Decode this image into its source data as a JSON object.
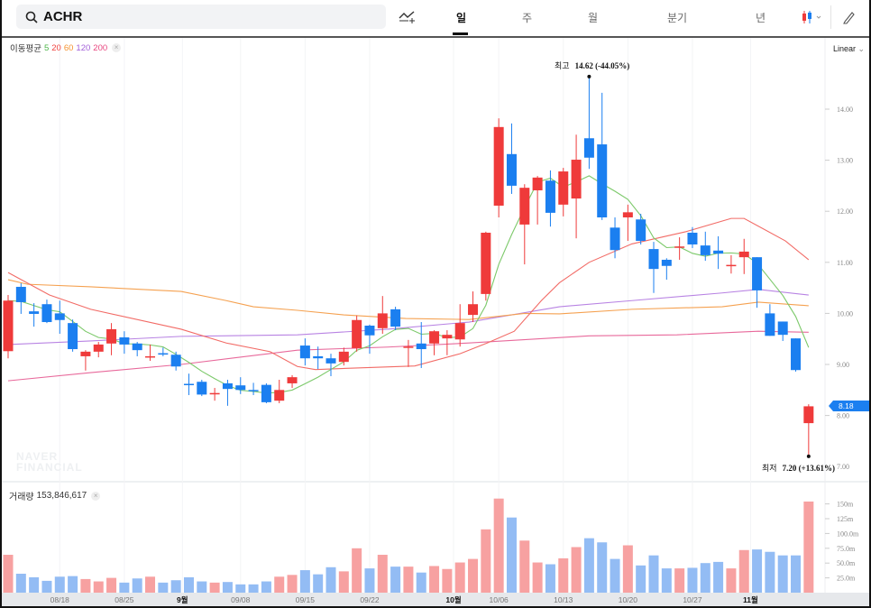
{
  "search": {
    "query": "ACHR"
  },
  "toolbar": {
    "periods": [
      "일",
      "주",
      "월",
      "분기",
      "년"
    ],
    "active_period": "일",
    "scale_mode": "Linear"
  },
  "legend": {
    "title": "이동평균",
    "items": [
      {
        "label": "5",
        "color": "#4cb548"
      },
      {
        "label": "20",
        "color": "#f0423f"
      },
      {
        "label": "60",
        "color": "#f59331"
      },
      {
        "label": "120",
        "color": "#a25fd8"
      },
      {
        "label": "200",
        "color": "#e8467f"
      }
    ],
    "close": "×"
  },
  "volume_legend": {
    "title": "거래량",
    "value": "153,846,617",
    "close": "×"
  },
  "annotations": {
    "high": {
      "label": "최고",
      "value": "14.62 (-44.05%)"
    },
    "low": {
      "label": "최저",
      "value": "7.20 (+13.61%)"
    }
  },
  "current_price": "8.18",
  "watermark": [
    "NAVER",
    "FINANCIAL"
  ],
  "colors": {
    "up": "#ef3a3a",
    "down": "#1b7ff0",
    "up_vol": "#f7a1a1",
    "down_vol": "#93bcf4",
    "ma5": "#7cc96a",
    "ma20": "#f26b66",
    "ma60": "#f5a150",
    "ma120": "#b883e3",
    "ma200": "#e8699b"
  },
  "chart_data": {
    "type": "candlestick",
    "price_ticks": [
      "14.00",
      "13.00",
      "12.00",
      "11.00",
      "10.00",
      "9.00",
      "8.00",
      "7.00"
    ],
    "volume_ticks": [
      {
        "v": 150,
        "label": "150m"
      },
      {
        "v": 125,
        "label": "125m"
      },
      {
        "v": 100,
        "label": "100.0m"
      },
      {
        "v": 75,
        "label": "75.0m"
      },
      {
        "v": 50,
        "label": "50.0m"
      },
      {
        "v": 25,
        "label": "25.0m"
      }
    ],
    "x_labels": [
      {
        "at": 4,
        "label": "08/18",
        "bold": false
      },
      {
        "at": 9,
        "label": "08/25",
        "bold": false
      },
      {
        "at": 13.5,
        "label": "9월",
        "bold": true
      },
      {
        "at": 18,
        "label": "09/08",
        "bold": false
      },
      {
        "at": 23,
        "label": "09/15",
        "bold": false
      },
      {
        "at": 28,
        "label": "09/22",
        "bold": false
      },
      {
        "at": 34.5,
        "label": "10월",
        "bold": true
      },
      {
        "at": 38,
        "label": "10/06",
        "bold": false
      },
      {
        "at": 43,
        "label": "10/13",
        "bold": false
      },
      {
        "at": 48,
        "label": "10/20",
        "bold": false
      },
      {
        "at": 53,
        "label": "10/27",
        "bold": false
      },
      {
        "at": 57.5,
        "label": "11월",
        "bold": true
      }
    ],
    "ohlc": [
      [
        9.26,
        10.36,
        9.12,
        10.25
      ],
      [
        10.52,
        10.59,
        9.99,
        10.22
      ],
      [
        10.04,
        10.2,
        9.74,
        9.99
      ],
      [
        10.18,
        10.27,
        9.81,
        9.83
      ],
      [
        10.0,
        10.25,
        9.6,
        9.87
      ],
      [
        9.81,
        9.88,
        9.25,
        9.3
      ],
      [
        9.16,
        9.28,
        8.88,
        9.25
      ],
      [
        9.25,
        9.44,
        9.14,
        9.39
      ],
      [
        9.41,
        9.81,
        9.18,
        9.69
      ],
      [
        9.53,
        9.65,
        9.21,
        9.39
      ],
      [
        9.41,
        9.44,
        9.16,
        9.28
      ],
      [
        9.16,
        9.39,
        9.07,
        9.16
      ],
      [
        9.22,
        9.33,
        9.16,
        9.2
      ],
      [
        9.19,
        9.25,
        8.88,
        8.96
      ],
      [
        8.62,
        8.82,
        8.4,
        8.6
      ],
      [
        8.66,
        8.7,
        8.38,
        8.41
      ],
      [
        8.42,
        8.54,
        8.29,
        8.44
      ],
      [
        8.63,
        8.7,
        8.19,
        8.52
      ],
      [
        8.59,
        8.75,
        8.42,
        8.5
      ],
      [
        8.5,
        8.64,
        8.4,
        8.48
      ],
      [
        8.6,
        8.63,
        8.24,
        8.26
      ],
      [
        8.29,
        8.7,
        8.24,
        8.5
      ],
      [
        8.63,
        8.79,
        8.54,
        8.75
      ],
      [
        9.37,
        9.51,
        8.98,
        9.12
      ],
      [
        9.16,
        9.35,
        8.91,
        9.12
      ],
      [
        9.12,
        9.21,
        8.77,
        9.02
      ],
      [
        9.05,
        9.33,
        8.98,
        9.25
      ],
      [
        9.32,
        9.96,
        9.25,
        9.87
      ],
      [
        9.76,
        9.78,
        9.21,
        9.57
      ],
      [
        9.71,
        10.34,
        9.6,
        10.0
      ],
      [
        10.08,
        10.13,
        9.67,
        9.74
      ],
      [
        9.33,
        9.48,
        8.95,
        9.35
      ],
      [
        9.41,
        9.83,
        8.93,
        9.3
      ],
      [
        9.41,
        9.67,
        9.18,
        9.65
      ],
      [
        9.51,
        9.67,
        9.18,
        9.58
      ],
      [
        9.49,
        10.18,
        9.35,
        9.81
      ],
      [
        9.97,
        10.43,
        9.83,
        10.18
      ],
      [
        10.38,
        11.6,
        10.25,
        11.58
      ],
      [
        12.11,
        13.82,
        11.88,
        13.65
      ],
      [
        13.12,
        13.72,
        12.34,
        12.5
      ],
      [
        11.74,
        12.53,
        10.96,
        12.46
      ],
      [
        12.41,
        12.69,
        11.74,
        12.66
      ],
      [
        12.6,
        12.8,
        11.7,
        11.97
      ],
      [
        12.13,
        12.85,
        11.9,
        12.78
      ],
      [
        12.25,
        13.5,
        11.47,
        13.01
      ],
      [
        13.43,
        14.62,
        12.83,
        13.05
      ],
      [
        13.31,
        14.32,
        11.83,
        11.88
      ],
      [
        11.68,
        11.88,
        11.08,
        11.24
      ],
      [
        11.88,
        12.13,
        11.42,
        11.98
      ],
      [
        11.84,
        11.95,
        11.35,
        11.42
      ],
      [
        11.26,
        11.4,
        10.4,
        10.87
      ],
      [
        11.05,
        11.08,
        10.66,
        10.93
      ],
      [
        11.29,
        11.49,
        11.05,
        11.31
      ],
      [
        11.58,
        11.69,
        11.28,
        11.35
      ],
      [
        11.33,
        11.6,
        11.03,
        11.14
      ],
      [
        11.23,
        11.51,
        10.87,
        11.17
      ],
      [
        10.93,
        11.14,
        10.78,
        10.95
      ],
      [
        11.1,
        11.46,
        10.77,
        11.21
      ],
      [
        11.1,
        11.1,
        10.11,
        10.45
      ],
      [
        10.0,
        10.18,
        9.56,
        9.56
      ],
      [
        9.84,
        9.84,
        9.46,
        9.58
      ],
      [
        9.51,
        9.51,
        8.86,
        8.89
      ],
      [
        7.85,
        8.22,
        7.2,
        8.18
      ]
    ],
    "volume_m": [
      64,
      32,
      26,
      20,
      27,
      28,
      23,
      19,
      25,
      17,
      24,
      27,
      17,
      21,
      26,
      19,
      17,
      18,
      14,
      14,
      19,
      27,
      30,
      38,
      31,
      43,
      36,
      75,
      41,
      64,
      44,
      44,
      34,
      45,
      40,
      51,
      57,
      107,
      159,
      127,
      88,
      51,
      48,
      58,
      77,
      92,
      85,
      57,
      80,
      46,
      63,
      41,
      41,
      42,
      50,
      52,
      41,
      72,
      73,
      69,
      63,
      63,
      154
    ],
    "ma_lines": {
      "ma20": [
        [
          0,
          10.8
        ],
        [
          3.2,
          10.36
        ],
        [
          6.4,
          10.08
        ],
        [
          13.4,
          9.69
        ],
        [
          16.9,
          9.42
        ],
        [
          20.3,
          9.25
        ],
        [
          22.4,
          8.96
        ],
        [
          23.8,
          8.9
        ],
        [
          28,
          8.94
        ],
        [
          31.5,
          8.97
        ],
        [
          35,
          9.21
        ],
        [
          37.1,
          9.42
        ],
        [
          39.2,
          9.65
        ],
        [
          41.3,
          10.25
        ],
        [
          42.7,
          10.6
        ],
        [
          45,
          11.0
        ],
        [
          48.3,
          11.36
        ],
        [
          52.5,
          11.6
        ],
        [
          56,
          11.86
        ],
        [
          57,
          11.86
        ],
        [
          60.2,
          11.42
        ],
        [
          62,
          11.05
        ]
      ],
      "ma60": [
        [
          0,
          10.66
        ],
        [
          1.5,
          10.57
        ],
        [
          6.4,
          10.52
        ],
        [
          13.4,
          10.43
        ],
        [
          16.9,
          10.25
        ],
        [
          19,
          10.13
        ],
        [
          22.4,
          10.06
        ],
        [
          26,
          9.97
        ],
        [
          30.8,
          9.9
        ],
        [
          35.7,
          9.88
        ],
        [
          40,
          10.0
        ],
        [
          42.7,
          9.99
        ],
        [
          48.3,
          10.08
        ],
        [
          55.3,
          10.13
        ],
        [
          58.1,
          10.22
        ],
        [
          62,
          10.15
        ]
      ],
      "ma120": [
        [
          0,
          9.39
        ],
        [
          6.4,
          9.46
        ],
        [
          13.4,
          9.55
        ],
        [
          22.4,
          9.58
        ],
        [
          29.4,
          9.69
        ],
        [
          35.7,
          9.83
        ],
        [
          42.7,
          10.13
        ],
        [
          48.3,
          10.25
        ],
        [
          55.3,
          10.4
        ],
        [
          58.1,
          10.47
        ],
        [
          62,
          10.36
        ]
      ],
      "ma200": [
        [
          0,
          8.68
        ],
        [
          6.4,
          8.84
        ],
        [
          13.4,
          9.0
        ],
        [
          22.4,
          9.28
        ],
        [
          29.4,
          9.34
        ],
        [
          35.7,
          9.42
        ],
        [
          45,
          9.56
        ],
        [
          51.8,
          9.58
        ],
        [
          58.1,
          9.65
        ],
        [
          62,
          9.63
        ]
      ]
    }
  }
}
